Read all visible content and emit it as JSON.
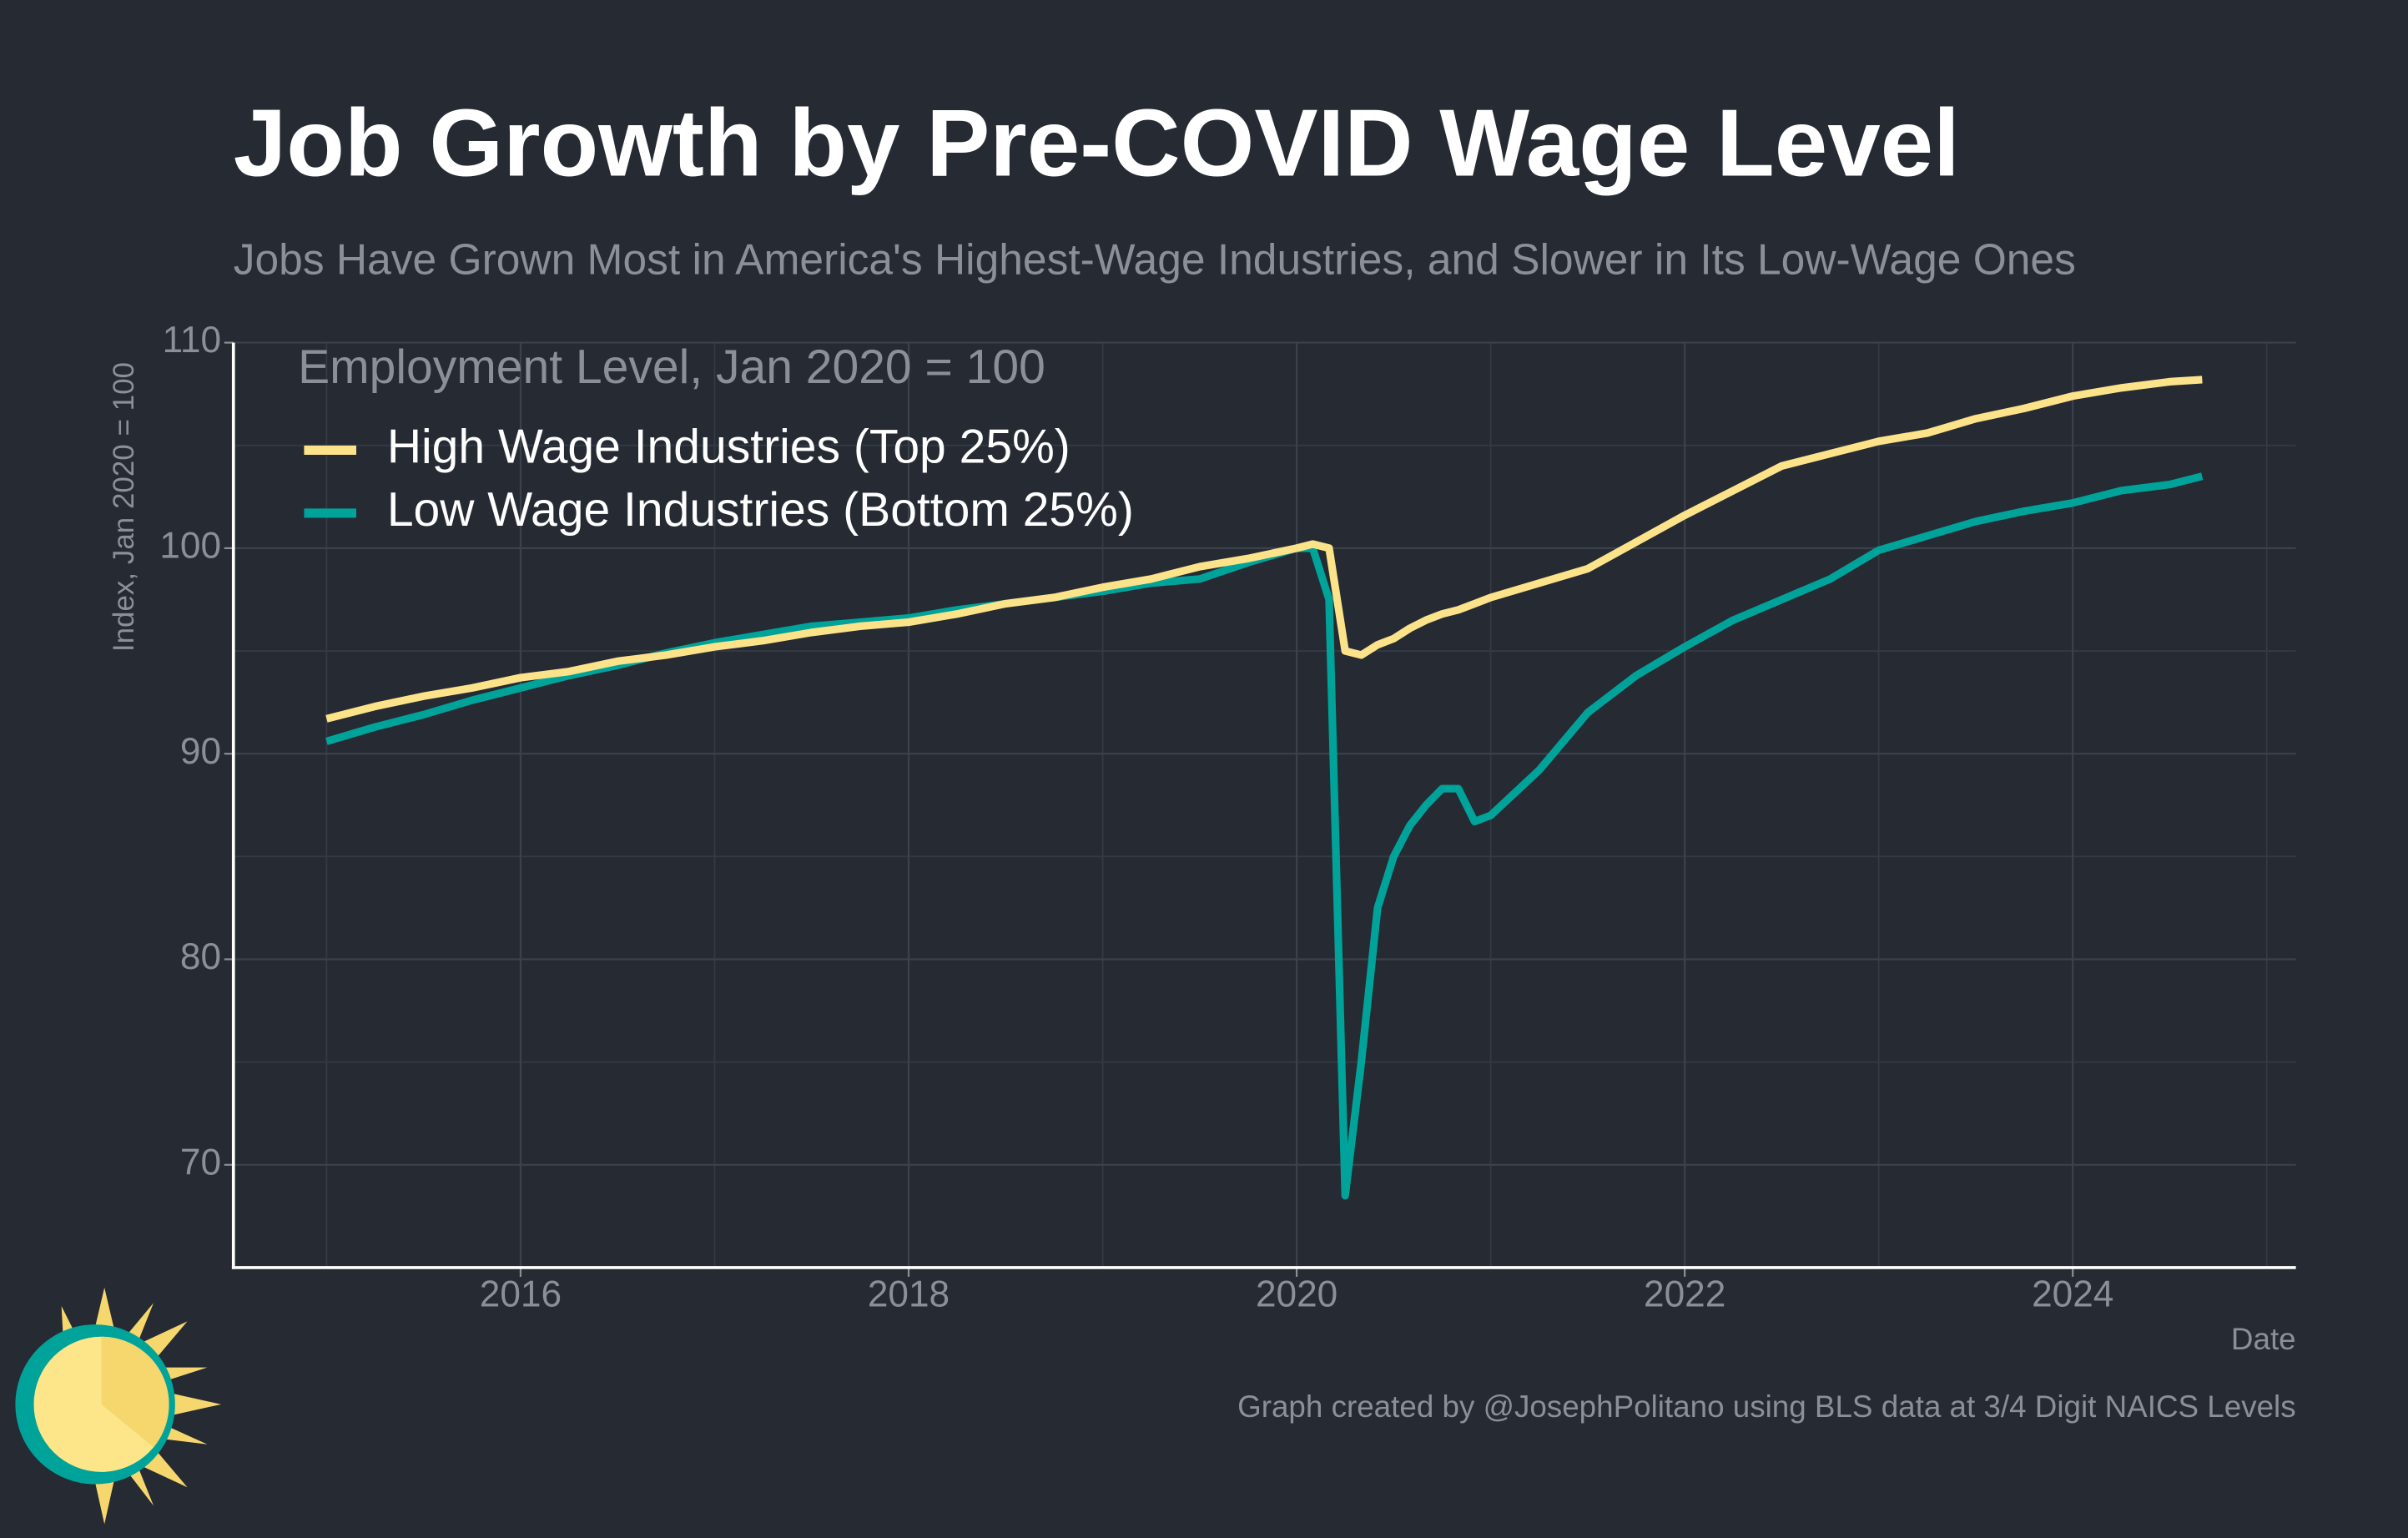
{
  "chart_data": {
    "type": "line",
    "title": "Job Growth by Pre-COVID Wage Level",
    "subtitle": "Jobs Have Grown Most in America's Highest-Wage Industries, and Slower in Its Low-Wage Ones",
    "y_label": "Index, Jan 2020 = 100",
    "x_label": "Date",
    "legend_title": "Employment Level, Jan 2020 = 100",
    "caption": "Graph created by @JosephPolitano using BLS data at 3/4 Digit NAICS Levels",
    "x": [
      2015,
      2015.25,
      2015.5,
      2015.75,
      2016,
      2016.25,
      2016.5,
      2016.75,
      2017,
      2017.25,
      2017.5,
      2017.75,
      2018,
      2018.25,
      2018.5,
      2018.75,
      2019,
      2019.25,
      2019.5,
      2019.75,
      2020,
      2020.083,
      2020.167,
      2020.25,
      2020.333,
      2020.417,
      2020.5,
      2020.583,
      2020.667,
      2020.75,
      2020.833,
      2020.917,
      2021,
      2021.25,
      2021.5,
      2021.75,
      2022,
      2022.25,
      2022.5,
      2022.75,
      2023,
      2023.25,
      2023.5,
      2023.75,
      2024,
      2024.25,
      2024.5,
      2024.667
    ],
    "series": [
      {
        "name": "High Wage Industries (Top 25%)",
        "color": "#fce38a",
        "values": [
          91.7,
          92.3,
          92.8,
          93.2,
          93.7,
          94.0,
          94.5,
          94.8,
          95.2,
          95.5,
          95.9,
          96.2,
          96.4,
          96.8,
          97.3,
          97.6,
          98.1,
          98.5,
          99.1,
          99.5,
          100.0,
          100.2,
          100.0,
          95.0,
          94.8,
          95.3,
          95.6,
          96.1,
          96.5,
          96.8,
          97.0,
          97.3,
          97.6,
          98.3,
          99.0,
          100.3,
          101.6,
          102.8,
          104.0,
          104.6,
          105.2,
          105.6,
          106.3,
          106.8,
          107.4,
          107.8,
          108.1,
          108.2
        ]
      },
      {
        "name": "Low Wage Industries (Bottom 25%)",
        "color": "#00a39a",
        "values": [
          90.6,
          91.3,
          91.9,
          92.6,
          93.2,
          93.8,
          94.3,
          94.9,
          95.4,
          95.8,
          96.2,
          96.4,
          96.6,
          97.0,
          97.3,
          97.6,
          97.9,
          98.3,
          98.5,
          99.3,
          100.0,
          100.0,
          97.5,
          68.5,
          75.0,
          82.5,
          85.0,
          86.5,
          87.5,
          88.3,
          88.3,
          86.7,
          87.0,
          89.2,
          92.0,
          93.8,
          95.2,
          96.5,
          97.5,
          98.5,
          99.9,
          100.6,
          101.3,
          101.8,
          102.2,
          102.8,
          103.1,
          103.5
        ]
      }
    ],
    "xlim": [
      2014.52,
      2025.15
    ],
    "xticks": [
      2016,
      2018,
      2020,
      2022,
      2024
    ],
    "ylim": [
      65,
      110
    ],
    "yticks": [
      70,
      80,
      90,
      100,
      110
    ],
    "grid": true,
    "legend": "top-left"
  }
}
